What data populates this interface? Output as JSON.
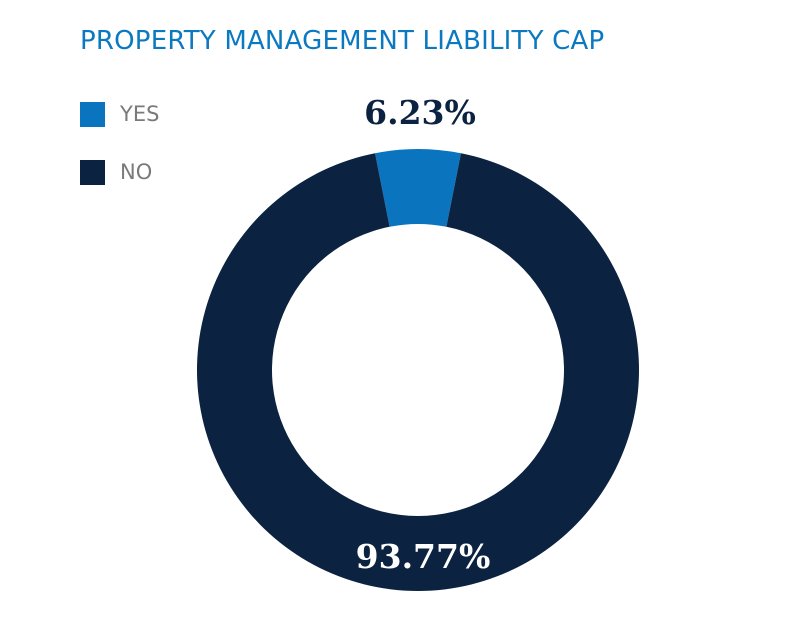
{
  "chart_data": {
    "type": "pie",
    "title": "PROPERTY MANAGEMENT LIABILITY CAP",
    "legend_position": "top-left",
    "slices": [
      {
        "label": "YES",
        "value": 6.23,
        "display": "6.23%",
        "color": "#0a74be"
      },
      {
        "label": "NO",
        "value": 93.77,
        "display": "93.77%",
        "color": "#0b2341"
      }
    ]
  }
}
